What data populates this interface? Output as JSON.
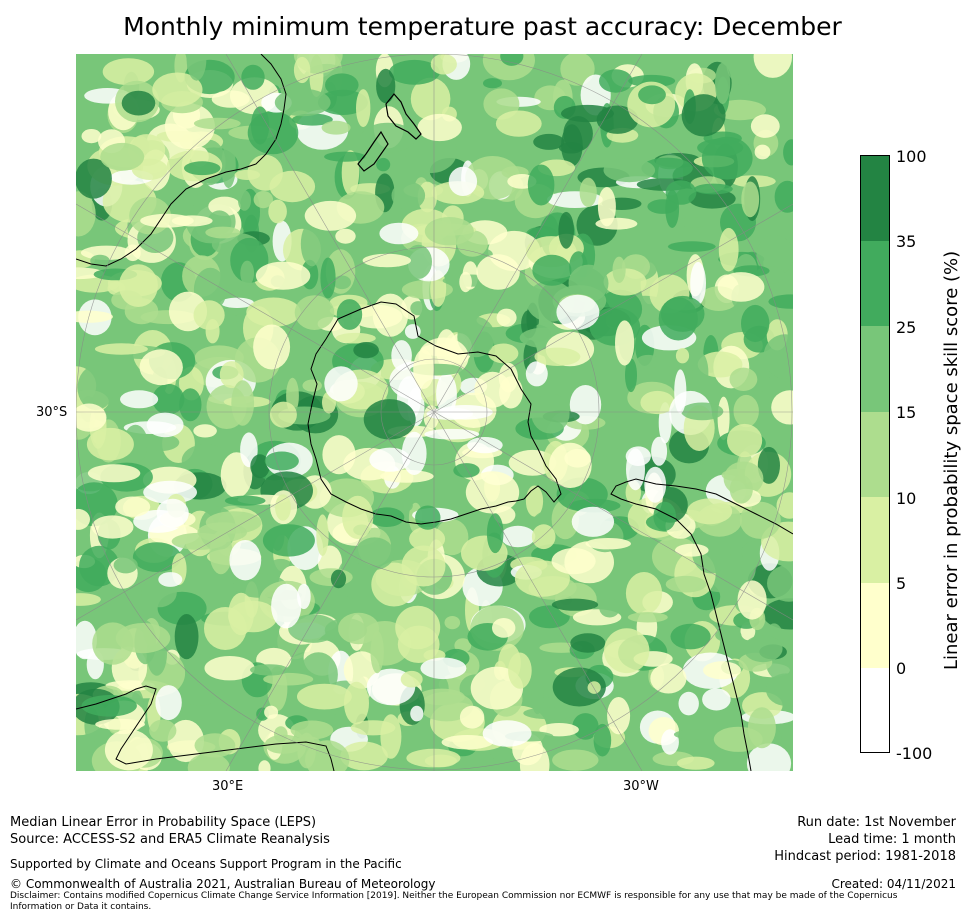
{
  "title": "Monthly minimum temperature past accuracy: December",
  "map": {
    "projection": "south-polar-stereographic",
    "lat_label": "30°S",
    "lon_labels": [
      "30°E",
      "30°W"
    ],
    "colors": {
      "ocean_neg": "#ffffff",
      "c0_5": "#ffffcc",
      "c5_10": "#d9f0a3",
      "c10_15": "#addd8e",
      "c15_25": "#78c679",
      "c25_35": "#41ab5d",
      "c35_100": "#238443",
      "coast": "#000000",
      "grid": "#888888"
    }
  },
  "colorbar": {
    "label": "Linear error in probability space skill score (%)",
    "ticks": [
      "100",
      "35",
      "25",
      "15",
      "10",
      "5",
      "0",
      "-100"
    ],
    "bins": [
      {
        "range": "35 to 100",
        "color": "#238443"
      },
      {
        "range": "25 to 35",
        "color": "#41ab5d"
      },
      {
        "range": "15 to 25",
        "color": "#78c679"
      },
      {
        "range": "10 to 15",
        "color": "#addd8e"
      },
      {
        "range": "5 to 10",
        "color": "#d9f0a3"
      },
      {
        "range": "0 to 5",
        "color": "#ffffcc"
      },
      {
        "range": "-100 to 0",
        "color": "#ffffff"
      }
    ]
  },
  "footer": {
    "line1": "Median Linear Error in Probability Space (LEPS)",
    "line2": "Source: ACCESS-S2 and ERA5 Climate Reanalysis",
    "line3": "Supported by Climate and Oceans Support Program in the Pacific",
    "line4": "© Commonwealth of Australia 2021, Australian Bureau of Meteorology",
    "disclaimer": "Disclaimer: Contains modified Copernicus Climate Change Service Information [2019]. Neither the European Commission nor ECMWF is responsible for any use that may be made of the Copernicus Information or Data it contains.",
    "run_date": "Run date: 1st November",
    "lead_time": "Lead time: 1 month",
    "hindcast": "Hindcast period: 1981-2018",
    "created": "Created: 04/11/2021"
  }
}
